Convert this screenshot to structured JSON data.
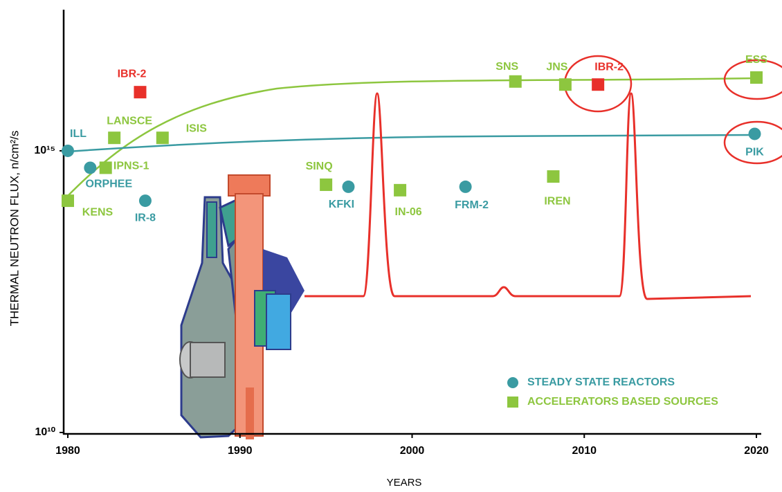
{
  "chart_data": {
    "type": "scatter",
    "y_label": "THERMAL NEUTRON FLUX, n/cm²/s",
    "x_label": "YEARS",
    "xlim": [
      1980,
      2020
    ],
    "xticks": [
      1980,
      1990,
      2000,
      2010,
      2020
    ],
    "ylim": [
      10000000000.0,
      3.2e+17
    ],
    "log_y": true,
    "yticks": [
      {
        "value": 10000000000.0,
        "label": "10¹⁰"
      },
      {
        "value": 1000000000000000.0,
        "label": "10¹⁵"
      }
    ],
    "legend": "bottom-right",
    "series": [
      {
        "name": "STEADY STATE REACTORS",
        "color": "#3a9ba2",
        "marker": "circle",
        "x": [
          1980,
          1981.3,
          1984.5,
          1996.3,
          2003.1,
          2019.9
        ],
        "values": [
          1000000000000000.0,
          500000000000000.0,
          130000000000000.0,
          230000000000000.0,
          230000000000000.0,
          2000000000000000.0
        ],
        "labels": [
          "ILL",
          "ORPHEE",
          "IR-8",
          "KFKI",
          "FRM-2",
          "PIK"
        ]
      },
      {
        "name": "ACCELERATORS BASED SOURCES",
        "color": "#8dc63f",
        "marker": "square",
        "x": [
          1980,
          1982.7,
          1982.2,
          1985.5,
          1995,
          1999.3,
          2008.2,
          2006,
          2008.9,
          2020
        ],
        "values": [
          130000000000000.0,
          1700000000000000.0,
          500000000000000.0,
          1700000000000000.0,
          250000000000000.0,
          200000000000000.0,
          350000000000000.0,
          1.7e+16,
          1.5e+16,
          2e+16
        ],
        "labels": [
          "KENS",
          "LANSCE",
          "IPNS-1",
          "ISIS",
          "SINQ",
          "IN-06",
          "IREN",
          "SNS",
          "JNS",
          "ESS"
        ]
      }
    ],
    "highlighted_points": {
      "color": "#e8302a",
      "marker": "square",
      "x": [
        1984.2,
        2010.8
      ],
      "values": [
        1.1e+16,
        1.5e+16
      ],
      "labels": [
        "IBR-2",
        "IBR-2"
      ]
    }
  }
}
